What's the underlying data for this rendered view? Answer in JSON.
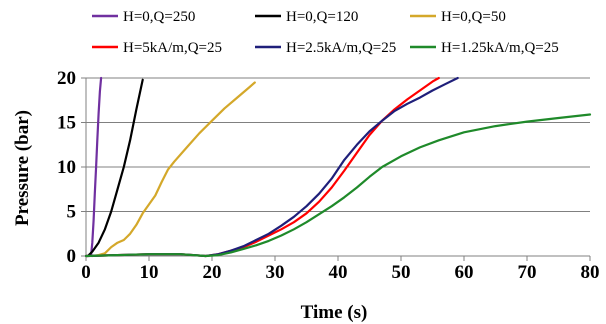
{
  "chart_data": {
    "type": "line",
    "title": "",
    "xlabel": "Time (s)",
    "ylabel": "Pressure (bar)",
    "xlim": [
      0,
      80
    ],
    "ylim": [
      0,
      20
    ],
    "xticks": [
      "0",
      "10",
      "20",
      "30",
      "40",
      "50",
      "60",
      "70",
      "80"
    ],
    "yticks": [
      "0",
      "5",
      "10",
      "15",
      "20"
    ],
    "grid": "horizontal",
    "legend_position": "top",
    "series": [
      {
        "name": "H=0,Q=250",
        "color": "#7030a0",
        "x": [
          0.8,
          1.0,
          1.2,
          1.4,
          1.6,
          1.8,
          2.0,
          2.2,
          2.4
        ],
        "y": [
          0,
          1.5,
          4,
          7,
          10,
          13,
          16,
          18.5,
          20
        ]
      },
      {
        "name": "H=0,Q=120",
        "color": "#000000",
        "x": [
          0.3,
          1.0,
          2.0,
          3.0,
          4.0,
          5.0,
          6.0,
          7.0,
          8.0,
          9.0
        ],
        "y": [
          0,
          0.5,
          1.5,
          3.0,
          5.0,
          7.5,
          10.0,
          13.0,
          16.5,
          19.8
        ]
      },
      {
        "name": "H=0,Q=50",
        "color": "#d4a82a",
        "x": [
          1.0,
          2.0,
          3.0,
          4.0,
          5.0,
          6.0,
          7.0,
          8.0,
          9.0,
          10.0,
          11.0,
          12.0,
          13.0,
          14.0,
          16.0,
          18.0,
          20.0,
          22.0,
          24.0,
          26.0,
          26.8
        ],
        "y": [
          0,
          0.1,
          0.3,
          1.0,
          1.5,
          1.8,
          2.5,
          3.5,
          4.8,
          5.8,
          6.8,
          8.3,
          9.7,
          10.6,
          12.2,
          13.8,
          15.2,
          16.6,
          17.8,
          19.0,
          19.5
        ]
      },
      {
        "name": "H=5kA/m,Q=25",
        "color": "#ff0000",
        "x": [
          0,
          5,
          10,
          15,
          19,
          21,
          23,
          25,
          27,
          29,
          31,
          33,
          35,
          37,
          39,
          41,
          43,
          45,
          47,
          49,
          51,
          53,
          55,
          56
        ],
        "y": [
          0,
          0.1,
          0.2,
          0.2,
          0,
          0.2,
          0.6,
          1.0,
          1.6,
          2.3,
          3.0,
          3.8,
          4.8,
          6.1,
          7.7,
          9.6,
          11.6,
          13.6,
          15.2,
          16.5,
          17.6,
          18.6,
          19.6,
          20.0
        ]
      },
      {
        "name": "H=2.5kA/m,Q=25",
        "color": "#1f1f7a",
        "x": [
          0,
          5,
          10,
          15,
          19,
          21,
          23,
          25,
          27,
          29,
          31,
          33,
          35,
          37,
          39,
          41,
          43,
          45,
          47,
          49,
          51,
          53,
          55,
          57,
          59
        ],
        "y": [
          0,
          0.1,
          0.2,
          0.2,
          0,
          0.2,
          0.6,
          1.1,
          1.8,
          2.5,
          3.4,
          4.4,
          5.6,
          7.0,
          8.7,
          10.8,
          12.5,
          14.0,
          15.2,
          16.3,
          17.1,
          17.8,
          18.6,
          19.3,
          20.0
        ]
      },
      {
        "name": "H=1.25kA/m,Q=25",
        "color": "#1f8a2a",
        "x": [
          0,
          5,
          10,
          15,
          19,
          21,
          23,
          25,
          27,
          29,
          31,
          33,
          35,
          37,
          39,
          41,
          43,
          45,
          47,
          50,
          53,
          56,
          60,
          65,
          70,
          75,
          80
        ],
        "y": [
          0,
          0.1,
          0.2,
          0.2,
          0,
          0.1,
          0.4,
          0.8,
          1.2,
          1.7,
          2.3,
          3.0,
          3.8,
          4.7,
          5.6,
          6.6,
          7.7,
          8.9,
          10.0,
          11.2,
          12.2,
          13.0,
          13.9,
          14.6,
          15.1,
          15.5,
          15.9
        ]
      }
    ]
  }
}
